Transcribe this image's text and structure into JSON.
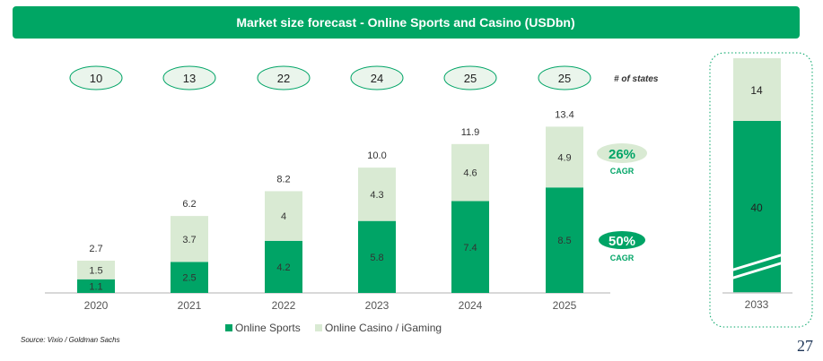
{
  "chart_data": {
    "type": "bar",
    "stacked": true,
    "title": "Market size forecast - Online Sports and Casino (USDbn)",
    "categories": [
      "2020",
      "2021",
      "2022",
      "2023",
      "2024",
      "2025"
    ],
    "series": [
      {
        "name": "Online Sports",
        "values": [
          1.1,
          2.5,
          4.2,
          5.8,
          7.4,
          8.5
        ],
        "color": "#00a466"
      },
      {
        "name": "Online Casino / iGaming",
        "values": [
          1.5,
          3.7,
          4.0,
          4.3,
          4.6,
          4.9
        ],
        "color": "#d9ead3"
      }
    ],
    "totals": [
      "2.7",
      "6.2",
      "8.2",
      "10.0",
      "11.9",
      "13.4"
    ],
    "states": [
      "10",
      "13",
      "22",
      "24",
      "25",
      "25"
    ],
    "states_label": "# of states",
    "cagr": [
      {
        "value": "26%",
        "label": "CAGR",
        "series": "Online Casino / iGaming"
      },
      {
        "value": "50%",
        "label": "CAGR",
        "series": "Online Sports"
      }
    ],
    "forecast": {
      "category": "2033",
      "sports": "40",
      "casino": "14",
      "axis_break": true
    },
    "legend_position": "bottom",
    "ylim": [
      0,
      14
    ]
  },
  "source": "Source: Vixio / Goldman Sachs",
  "page_number": "27",
  "colors": {
    "primary": "#00a466",
    "light": "#d9ead3",
    "title_bar": "#00a664"
  }
}
